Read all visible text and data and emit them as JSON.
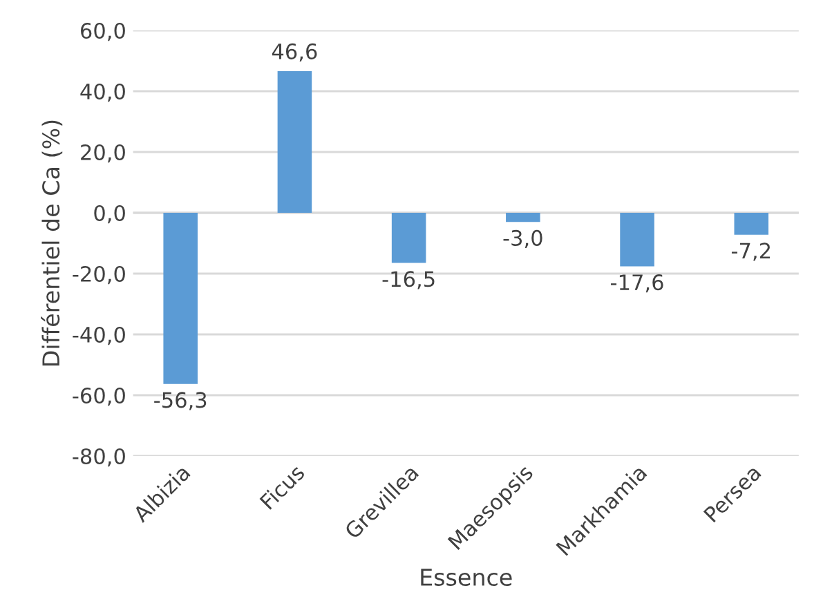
{
  "chart_data": {
    "type": "bar",
    "xlabel": "Essence",
    "ylabel": "Différentiel de Ca (%)",
    "categories": [
      "Albizia",
      "Ficus",
      "Grevillea",
      "Maesopsis",
      "Markhamia",
      "Persea"
    ],
    "values": [
      -56.3,
      46.6,
      -16.5,
      -3.0,
      -17.6,
      -7.2
    ],
    "value_labels": [
      "-56,3",
      "46,6",
      "-16,5",
      "-3,0",
      "-17,6",
      "-7,2"
    ],
    "color": "#5b9bd5",
    "ylim": [
      -80,
      60
    ],
    "yticks": [
      {
        "value": -80,
        "label": "-80,0"
      },
      {
        "value": -60,
        "label": "-60,0"
      },
      {
        "value": -40,
        "label": "-40,0"
      },
      {
        "value": -20,
        "label": "-20,0"
      },
      {
        "value": 0,
        "label": "0,0"
      },
      {
        "value": 20,
        "label": "20,0"
      },
      {
        "value": 40,
        "label": "40,0"
      },
      {
        "value": 60,
        "label": "60,0"
      }
    ],
    "grid": "y",
    "legend": false
  }
}
